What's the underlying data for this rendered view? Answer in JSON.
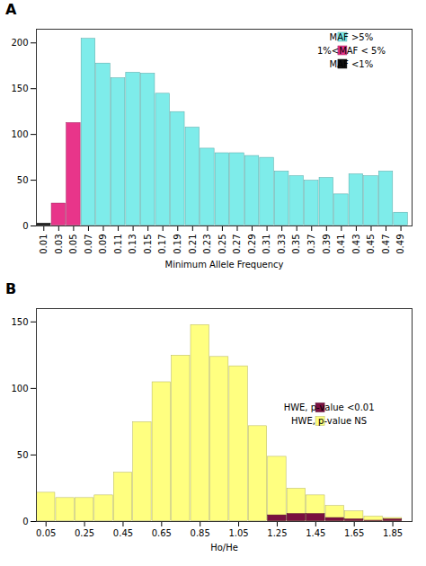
{
  "chart_data": [
    {
      "type": "bar",
      "title": "A",
      "xlabel": "Minimum Allele Frequency",
      "x": [
        0.01,
        0.03,
        0.05,
        0.07,
        0.09,
        0.11,
        0.13,
        0.15,
        0.17,
        0.19,
        0.21,
        0.23,
        0.25,
        0.27,
        0.29,
        0.31,
        0.33,
        0.35,
        0.37,
        0.39,
        0.41,
        0.43,
        0.45,
        0.47,
        0.49
      ],
      "series": [
        {
          "name": "MAF >5%",
          "color": "#7eecea",
          "values": [
            null,
            null,
            null,
            205,
            178,
            162,
            168,
            167,
            145,
            125,
            108,
            85,
            80,
            80,
            77,
            75,
            60,
            55,
            50,
            53,
            35,
            57,
            55,
            60,
            15
          ]
        },
        {
          "name": "1%<MAF < 5%",
          "color": "#e8358a",
          "values": [
            null,
            25,
            113,
            null,
            null,
            null,
            null,
            null,
            null,
            null,
            null,
            null,
            null,
            null,
            null,
            null,
            null,
            null,
            null,
            null,
            null,
            null,
            null,
            null,
            null
          ]
        },
        {
          "name": "MAF <1%",
          "color": "#111111",
          "values": [
            3,
            null,
            null,
            null,
            null,
            null,
            null,
            null,
            null,
            null,
            null,
            null,
            null,
            null,
            null,
            null,
            null,
            null,
            null,
            null,
            null,
            null,
            null,
            null,
            null
          ]
        }
      ],
      "xlim": [
        0.0,
        0.505
      ],
      "xticks": [
        0.01,
        0.03,
        0.05,
        0.07,
        0.09,
        0.11,
        0.13,
        0.15,
        0.17,
        0.19,
        0.21,
        0.23,
        0.25,
        0.27,
        0.29,
        0.31,
        0.33,
        0.35,
        0.37,
        0.39,
        0.41,
        0.43,
        0.45,
        0.47,
        0.49
      ],
      "ylim": [
        0,
        215
      ],
      "yticks": [
        0,
        50,
        100,
        150,
        200
      ],
      "stacked": false,
      "grid": false,
      "legend": "upper right"
    },
    {
      "type": "bar",
      "title": "B",
      "xlabel": "Ho/He",
      "x": [
        0.05,
        0.15,
        0.25,
        0.35,
        0.45,
        0.55,
        0.65,
        0.75,
        0.85,
        0.95,
        1.05,
        1.15,
        1.25,
        1.35,
        1.45,
        1.55,
        1.65,
        1.75,
        1.85
      ],
      "series": [
        {
          "name": "HWE, p-value <0.01",
          "color": "#7a1040",
          "values": [
            0,
            0,
            0,
            0,
            0,
            0,
            0,
            0,
            0,
            0,
            0,
            0,
            5,
            6,
            6,
            3,
            2,
            1,
            2
          ]
        },
        {
          "name": "HWE, p-value NS",
          "color": "#ffff80",
          "values": [
            22,
            18,
            18,
            20,
            37,
            75,
            105,
            125,
            148,
            124,
            117,
            72,
            49,
            25,
            20,
            12,
            8,
            4,
            3
          ]
        }
      ],
      "xlim": [
        0.0,
        1.95
      ],
      "xticks": [
        0.05,
        0.25,
        0.45,
        0.65,
        0.85,
        1.05,
        1.25,
        1.45,
        1.65,
        1.85
      ],
      "ylim": [
        0,
        160
      ],
      "yticks": [
        0,
        50,
        100,
        150
      ],
      "stacked": false,
      "grid": false,
      "legend": "center right"
    }
  ]
}
